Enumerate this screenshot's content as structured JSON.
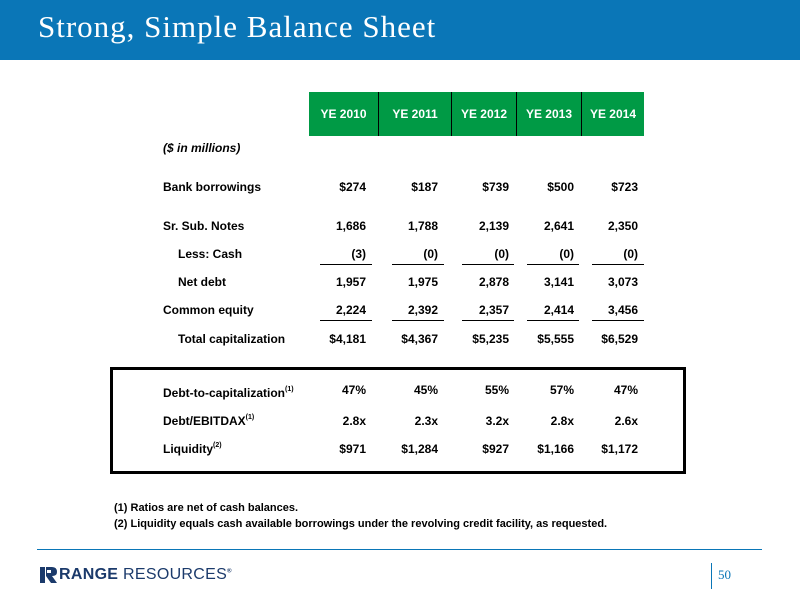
{
  "slide": {
    "title": "Strong, Simple Balance Sheet",
    "page_number": "50"
  },
  "table": {
    "unit_label": "($ in millions)",
    "columns": [
      "YE 2010",
      "YE 2011",
      "YE 2012",
      "YE 2013",
      "YE 2014"
    ],
    "rows": [
      {
        "label": "Bank borrowings",
        "values": [
          "$274",
          "$187",
          "$739",
          "$500",
          "$723"
        ]
      },
      {
        "label": "Sr. Sub. Notes",
        "values": [
          "1,686",
          "1,788",
          "2,139",
          "2,641",
          "2,350"
        ]
      },
      {
        "label": "Less: Cash",
        "values": [
          "(3)",
          "(0)",
          "(0)",
          "(0)",
          "(0)"
        ]
      },
      {
        "label": "Net debt",
        "values": [
          "1,957",
          "1,975",
          "2,878",
          "3,141",
          "3,073"
        ]
      },
      {
        "label": "Common equity",
        "values": [
          "2,224",
          "2,392",
          "2,357",
          "2,414",
          "3,456"
        ]
      },
      {
        "label": "Total capitalization",
        "values": [
          "$4,181",
          "$4,367",
          "$5,235",
          "$5,555",
          "$6,529"
        ]
      }
    ],
    "ratios": [
      {
        "label": "Debt-to-capitalization",
        "footnote": "(1)",
        "values": [
          "47%",
          "45%",
          "55%",
          "57%",
          "47%"
        ]
      },
      {
        "label": "Debt/EBITDAX",
        "footnote": "(1)",
        "values": [
          "2.8x",
          "2.3x",
          "3.2x",
          "2.8x",
          "2.6x"
        ]
      },
      {
        "label": "Liquidity",
        "footnote": "(2)",
        "values": [
          "$971",
          "$1,284",
          "$927",
          "$1,166",
          "$1,172"
        ]
      }
    ]
  },
  "footnotes": [
    "(1)  Ratios are net of cash balances.",
    "(2)  Liquidity equals cash available borrowings under the revolving credit facility, as requested."
  ],
  "logo": {
    "brand_word_1": "RANGE",
    "brand_word_2": " RESOURCES",
    "registered_mark": "®"
  },
  "colors": {
    "header_blue": "#0a76b7",
    "column_header_green": "#009a45",
    "logo_navy": "#1b3a6b"
  }
}
